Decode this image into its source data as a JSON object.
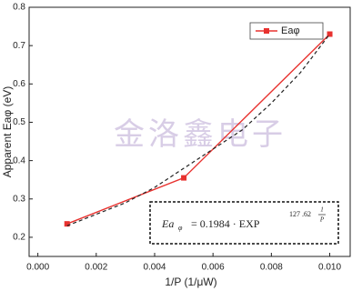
{
  "chart_data": {
    "type": "line",
    "x_label": "1/P (1/μW)",
    "y_label": "Apparent Eaφ (eV)",
    "xlim": [
      -0.0003,
      0.0107
    ],
    "ylim": [
      0.15,
      0.8
    ],
    "xticks": [
      {
        "value": 0,
        "label": "0.000"
      },
      {
        "value": 0.002,
        "label": "0.002"
      },
      {
        "value": 0.004,
        "label": "0.004"
      },
      {
        "value": 0.006,
        "label": "0.006"
      },
      {
        "value": 0.008,
        "label": "0.008"
      },
      {
        "value": 0.01,
        "label": "0.010"
      }
    ],
    "yticks": [
      0.2,
      0.3,
      0.4,
      0.5,
      0.6,
      0.7,
      0.8
    ],
    "series": [
      {
        "name": "Eaφ",
        "color": "#e8322f",
        "marker": "square",
        "x": [
          0.001,
          0.005,
          0.01
        ],
        "values": [
          0.235,
          0.355,
          0.73
        ]
      },
      {
        "color": "#222222",
        "dashed": true,
        "x": [
          0.001,
          0.002,
          0.003,
          0.004,
          0.005,
          0.006,
          0.007,
          0.008,
          0.009,
          0.01
        ],
        "values": [
          0.23,
          0.26,
          0.29,
          0.33,
          0.38,
          0.43,
          0.48,
          0.55,
          0.63,
          0.73
        ]
      }
    ],
    "annotation": {
      "lhs": "Ea",
      "lhs_sub": "φ",
      "rhs": "= 0.1984  · EXP",
      "exponent": "127 .62",
      "frac_num": "1",
      "frac_den": "P"
    },
    "watermark": "金洛鑫电子"
  }
}
